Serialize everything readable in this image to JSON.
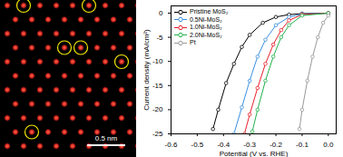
{
  "chart_data": {
    "type": "line",
    "xlabel": "Potential (V vs. RHE)",
    "ylabel": "Current density (mA/cm²)",
    "xlim": [
      -0.6,
      0.03
    ],
    "ylim": [
      -25,
      1.5
    ],
    "xticks": [
      -0.6,
      -0.5,
      -0.4,
      -0.3,
      -0.2,
      -0.1,
      {
        "value": 0,
        "label": "0.0"
      }
    ],
    "yticks": [
      -25,
      -20,
      -15,
      -10,
      -5,
      0
    ],
    "legend": "upper left",
    "marker": "circle",
    "line_style": "solid",
    "series": [
      {
        "name": "Pristine MoS₂",
        "color": "#000000",
        "x": [
          0,
          -0.1,
          -0.15,
          -0.2,
          -0.25,
          -0.3,
          -0.33,
          -0.36,
          -0.39,
          -0.42,
          -0.44
        ],
        "values": [
          0,
          -0.1,
          -0.3,
          -0.8,
          -2,
          -4.5,
          -7,
          -10.5,
          -14.5,
          -20,
          -24
        ]
      },
      {
        "name": "0.5Ni-MoS₂",
        "color": "#3b8fe0",
        "x": [
          0,
          -0.1,
          -0.15,
          -0.2,
          -0.24,
          -0.27,
          -0.3,
          -0.33,
          -0.36
        ],
        "values": [
          0,
          -0.2,
          -0.8,
          -2.5,
          -5.5,
          -9,
          -14,
          -19.5,
          -25
        ]
      },
      {
        "name": "1.0Ni-MoS₂",
        "color": "#e8202a",
        "x": [
          0,
          -0.1,
          -0.15,
          -0.18,
          -0.21,
          -0.24,
          -0.27,
          -0.3,
          -0.32
        ],
        "values": [
          0,
          -0.3,
          -1.5,
          -3.5,
          -6.5,
          -10.5,
          -15.5,
          -21,
          -25
        ]
      },
      {
        "name": "2.0Ni-MoS₂",
        "color": "#22b14c",
        "x": [
          0,
          -0.1,
          -0.15,
          -0.18,
          -0.21,
          -0.24,
          -0.27,
          -0.29
        ],
        "values": [
          0,
          -0.5,
          -2.5,
          -5,
          -9,
          -14,
          -20,
          -24.5
        ]
      },
      {
        "name": "Pt",
        "color": "#999999",
        "x": [
          0,
          -0.02,
          -0.04,
          -0.06,
          -0.08,
          -0.1,
          -0.11
        ],
        "values": [
          -0.5,
          -2,
          -5,
          -9,
          -14,
          -20,
          -24
        ]
      }
    ]
  },
  "micrograph": {
    "scale_bar": "0.5 nm"
  }
}
